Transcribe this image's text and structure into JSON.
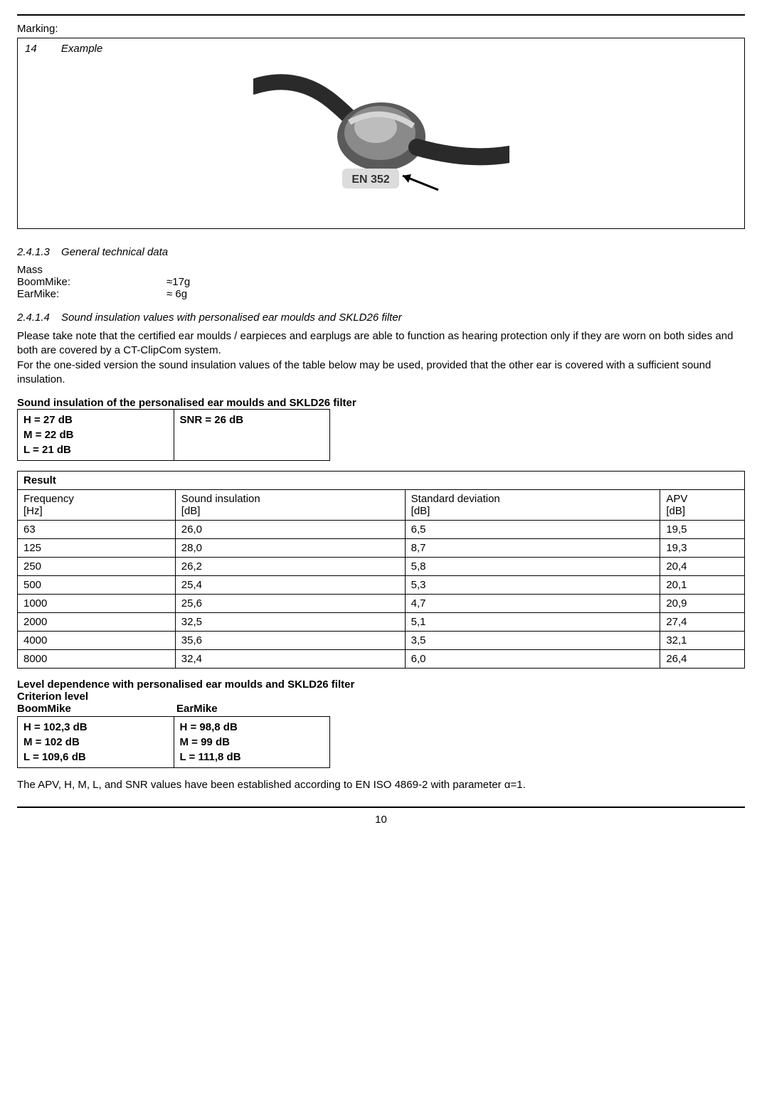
{
  "marking_label": "Marking:",
  "example": {
    "num": "14",
    "word": "Example"
  },
  "figure": {
    "marking_text": "EN 352"
  },
  "section_2413": {
    "num": "2.4.1.3",
    "title": "General technical data"
  },
  "mass": {
    "heading": "Mass",
    "rows": [
      {
        "label": "BoomMike:",
        "value": "≈17g"
      },
      {
        "label": "EarMike:",
        "value": "≈ 6g"
      }
    ]
  },
  "section_2414": {
    "num": "2.4.1.4",
    "title": "Sound insulation values with personalised ear moulds and SKLD26 filter"
  },
  "note_text": "Please take note that the certified ear moulds / earpieces and earplugs are able to function as hearing protection only if they are worn on both sides and both are covered by a CT-ClipCom system.\nFor the one-sided version the sound insulation values of the table below may be used, provided that the other ear is covered with a sufficient sound insulation.",
  "sound_insulation_heading": "Sound insulation of the personalised ear moulds and SKLD26 filter",
  "hml_snr": {
    "h": "H = 27 dB",
    "m": "M = 22 dB",
    "l": "L = 21 dB",
    "snr": "SNR = 26 dB"
  },
  "result_table": {
    "title": "Result",
    "columns": [
      "Frequency\n[Hz]",
      "Sound insulation\n[dB]",
      "Standard deviation\n[dB]",
      "APV\n[dB]"
    ],
    "rows": [
      [
        "63",
        "26,0",
        "6,5",
        "19,5"
      ],
      [
        "125",
        "28,0",
        "8,7",
        "19,3"
      ],
      [
        "250",
        "26,2",
        "5,8",
        "20,4"
      ],
      [
        "500",
        "25,4",
        "5,3",
        "20,1"
      ],
      [
        "1000",
        "25,6",
        "4,7",
        "20,9"
      ],
      [
        "2000",
        "32,5",
        "5,1",
        "27,4"
      ],
      [
        "4000",
        "35,6",
        "3,5",
        "32,1"
      ],
      [
        "8000",
        "32,4",
        "6,0",
        "26,4"
      ]
    ]
  },
  "level_dep_heading": "Level dependence with personalised ear moulds and SKLD26 filter",
  "criterion_heading": "Criterion level",
  "criterion_labels": {
    "left": "BoomMike",
    "right": "EarMike"
  },
  "criterion_table": {
    "boommike": {
      "h": "H = 102,3 dB",
      "m": "M = 102 dB",
      "l": "L = 109,6 dB"
    },
    "earmike": {
      "h": "H = 98,8 dB",
      "m": "M = 99 dB",
      "l": "L = 111,8 dB"
    }
  },
  "footnote": "The APV, H, M, L, and SNR values have been established according to EN ISO 4869-2 with parameter α=1.",
  "page_number": "10"
}
